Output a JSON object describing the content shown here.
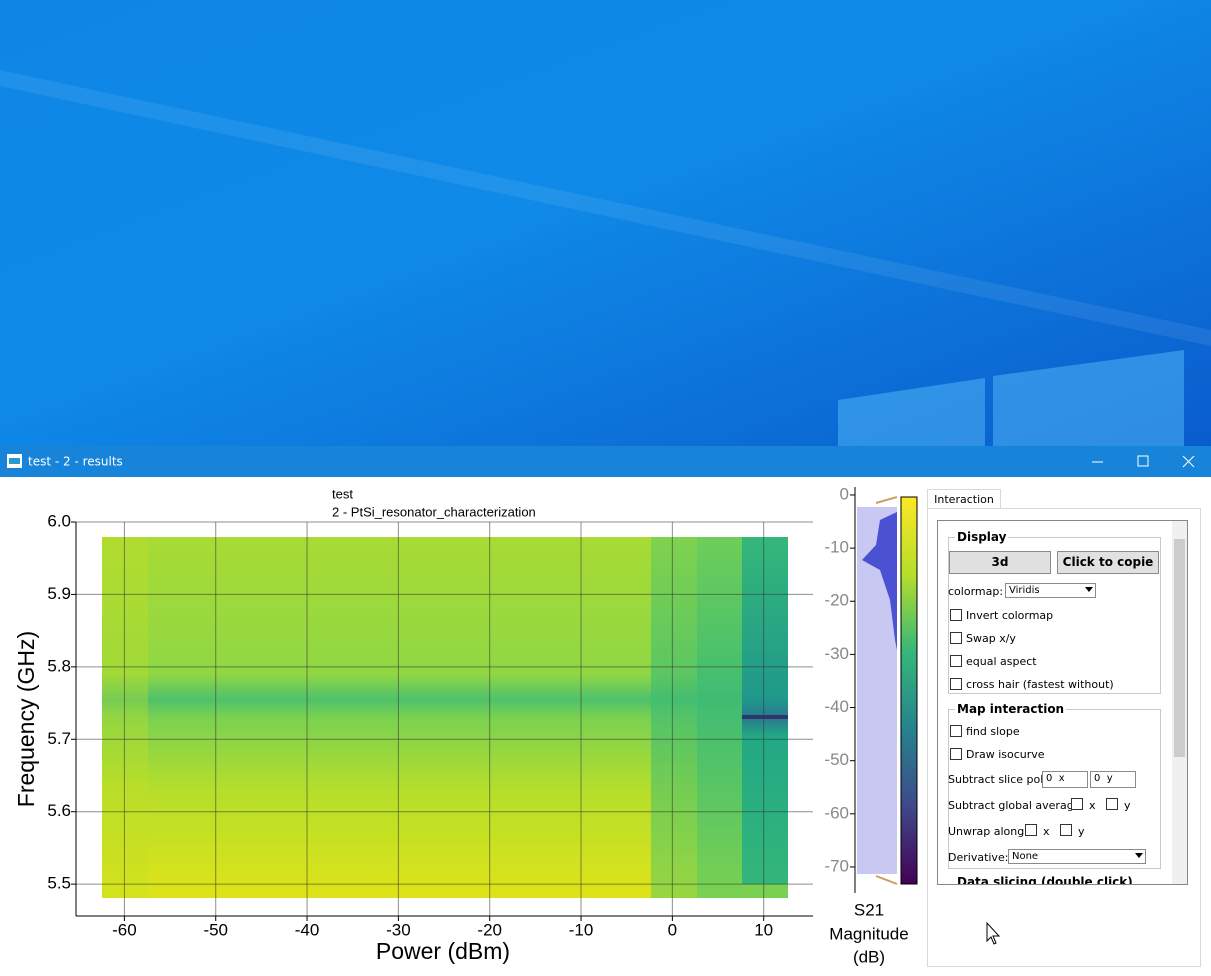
{
  "window": {
    "title": "test - 2 - results"
  },
  "plot": {
    "title": "test",
    "subtitle": "2 - PtSi_resonator_characterization",
    "x_label": "Power (dBm)",
    "y_label": "Frequency (GHz)",
    "xlim": [
      -65.3,
      15.4
    ],
    "xticks": [
      -60,
      -50,
      -40,
      -30,
      -20,
      -10,
      0,
      10
    ],
    "ylim": [
      5.456,
      6.0
    ],
    "yticks": [
      5.5,
      5.6,
      5.7,
      5.8,
      5.9,
      {
        "value": 6,
        "label": "6.0"
      }
    ]
  },
  "colorbar": {
    "label_lines": [
      "S21",
      "Magnitude",
      "(dB)"
    ],
    "lim": [
      -74.9,
      1.5
    ],
    "ticks": [
      0,
      -10,
      -20,
      -30,
      -40,
      -50,
      -60,
      -70
    ]
  },
  "panel": {
    "tab": "Interaction",
    "display": {
      "title": "Display",
      "buttons": [
        "3d",
        "Click to copie"
      ],
      "colormap_label": "colormap:",
      "colormap": "Viridis",
      "checkboxes": [
        "Invert colormap",
        "Swap x/y",
        "equal aspect",
        "cross hair (fastest without)"
      ]
    },
    "map_interaction": {
      "title": "Map interaction",
      "checkboxes": [
        "find slope",
        "Draw isocurve"
      ],
      "slice_poly_label": "Subtract slice poly:",
      "spins": [
        {
          "value": "0",
          "axis": "x"
        },
        {
          "value": "0",
          "axis": "y"
        }
      ],
      "global_average_label": "Subtract global average:",
      "global_average_axes": [
        "x",
        "y"
      ],
      "unwrap_label": "Unwrap along:",
      "unwrap_axes": [
        "x",
        "y"
      ],
      "derivative_label": "Derivative:",
      "derivative": "None"
    },
    "next_group": "Data slicing (double click)"
  }
}
